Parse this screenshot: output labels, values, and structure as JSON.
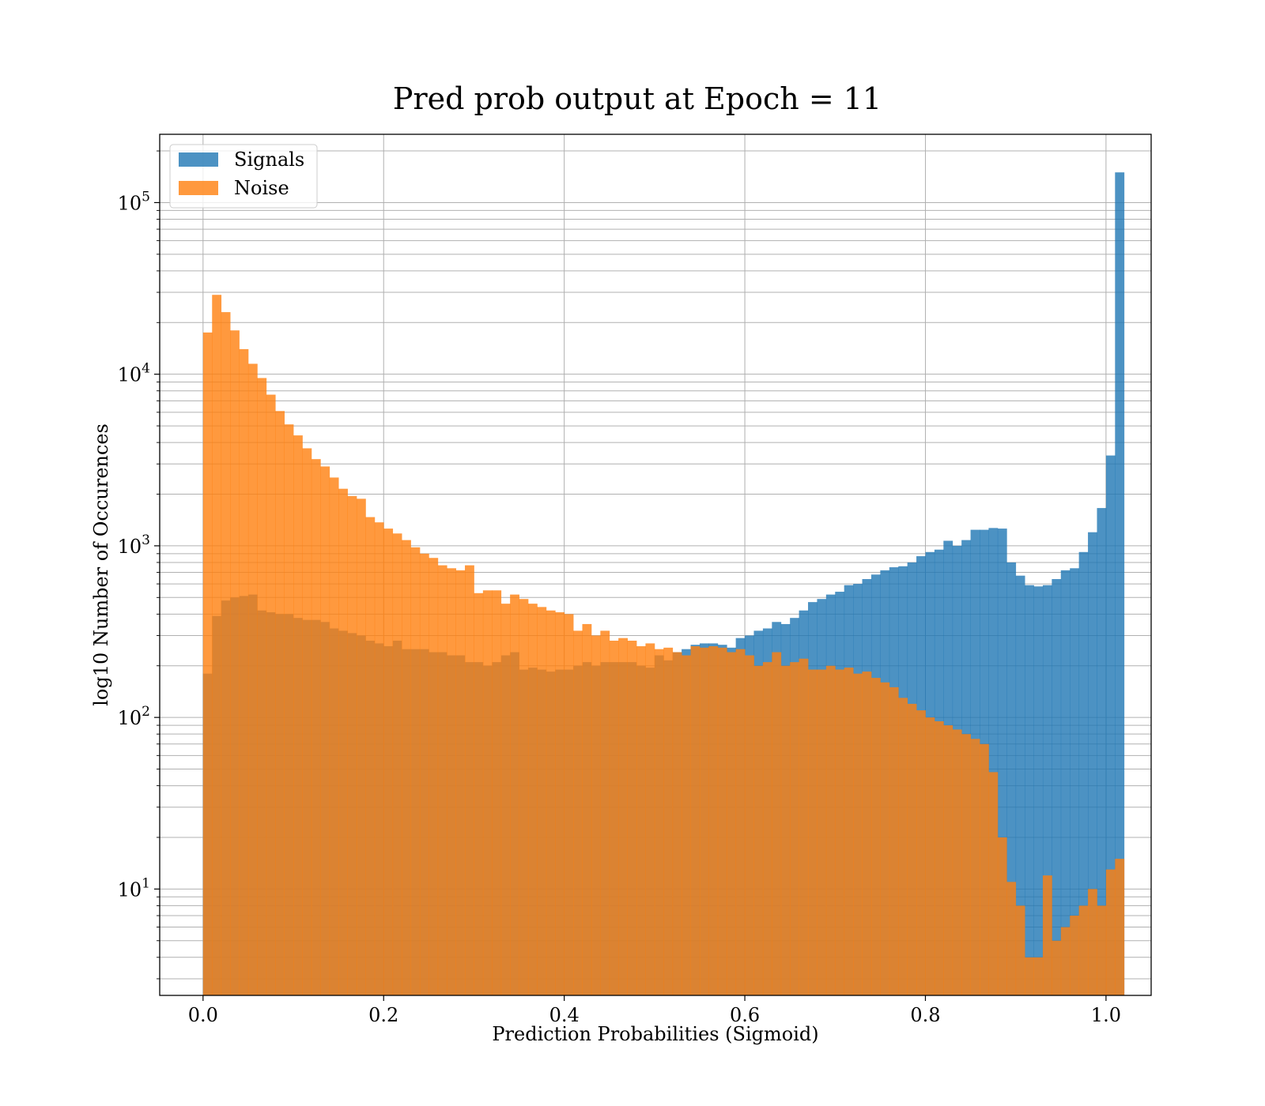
{
  "chart_data": {
    "type": "histogram",
    "title": "Pred prob output at Epoch = 11",
    "xlabel": "Prediction Probabilities (Sigmoid)",
    "ylabel": "log10 Number of Occurences",
    "xlim": [
      -0.048,
      1.05
    ],
    "ylim": [
      2.4,
      250000
    ],
    "yscale": "log",
    "grid": true,
    "legend_position": "top-left",
    "bin_width": 0.01,
    "x_ticks": [
      "0.0",
      "0.2",
      "0.4",
      "0.6",
      "0.8",
      "1.0"
    ],
    "y_ticks": [
      {
        "base": "10",
        "exp": "1",
        "value": 10
      },
      {
        "base": "10",
        "exp": "2",
        "value": 100
      },
      {
        "base": "10",
        "exp": "3",
        "value": 1000
      },
      {
        "base": "10",
        "exp": "4",
        "value": 10000
      },
      {
        "base": "10",
        "exp": "5",
        "value": 100000
      }
    ],
    "colors": {
      "signals": "#1f77b4",
      "noise": "#ff7f0e",
      "grid": "#b0b0b0"
    },
    "series": [
      {
        "name": "Signals",
        "color": "#1f77b4",
        "values": [
          180,
          390,
          480,
          500,
          510,
          520,
          420,
          410,
          400,
          400,
          380,
          370,
          370,
          360,
          330,
          320,
          310,
          300,
          280,
          270,
          260,
          280,
          250,
          250,
          250,
          240,
          240,
          230,
          230,
          210,
          210,
          200,
          210,
          230,
          240,
          190,
          195,
          190,
          185,
          190,
          190,
          200,
          210,
          200,
          210,
          210,
          210,
          210,
          200,
          195,
          230,
          215,
          240,
          250,
          265,
          270,
          270,
          265,
          255,
          290,
          300,
          320,
          330,
          360,
          350,
          380,
          420,
          470,
          490,
          520,
          540,
          590,
          600,
          640,
          680,
          720,
          750,
          760,
          800,
          870,
          920,
          950,
          1070,
          1000,
          1080,
          1240,
          1240,
          1270,
          1260,
          800,
          670,
          590,
          580,
          590,
          640,
          720,
          740,
          920,
          1200,
          1660,
          3360,
          150000
        ]
      },
      {
        "name": "Noise",
        "color": "#ff7f0e",
        "values": [
          17500,
          29000,
          23000,
          18000,
          14000,
          11500,
          9500,
          7600,
          6100,
          5100,
          4400,
          3700,
          3200,
          2900,
          2500,
          2150,
          1950,
          1880,
          1470,
          1370,
          1260,
          1180,
          1080,
          980,
          900,
          850,
          770,
          740,
          720,
          770,
          530,
          550,
          550,
          460,
          520,
          490,
          460,
          440,
          420,
          410,
          400,
          320,
          350,
          300,
          320,
          280,
          290,
          280,
          260,
          270,
          250,
          255,
          240,
          230,
          260,
          255,
          260,
          255,
          240,
          250,
          230,
          200,
          210,
          240,
          200,
          210,
          220,
          190,
          190,
          200,
          190,
          195,
          180,
          185,
          170,
          160,
          150,
          130,
          120,
          110,
          100,
          95,
          90,
          85,
          80,
          75,
          70,
          48,
          20,
          11,
          8,
          4,
          4,
          12,
          5,
          6,
          7,
          8,
          10,
          8,
          13,
          15
        ]
      }
    ]
  }
}
